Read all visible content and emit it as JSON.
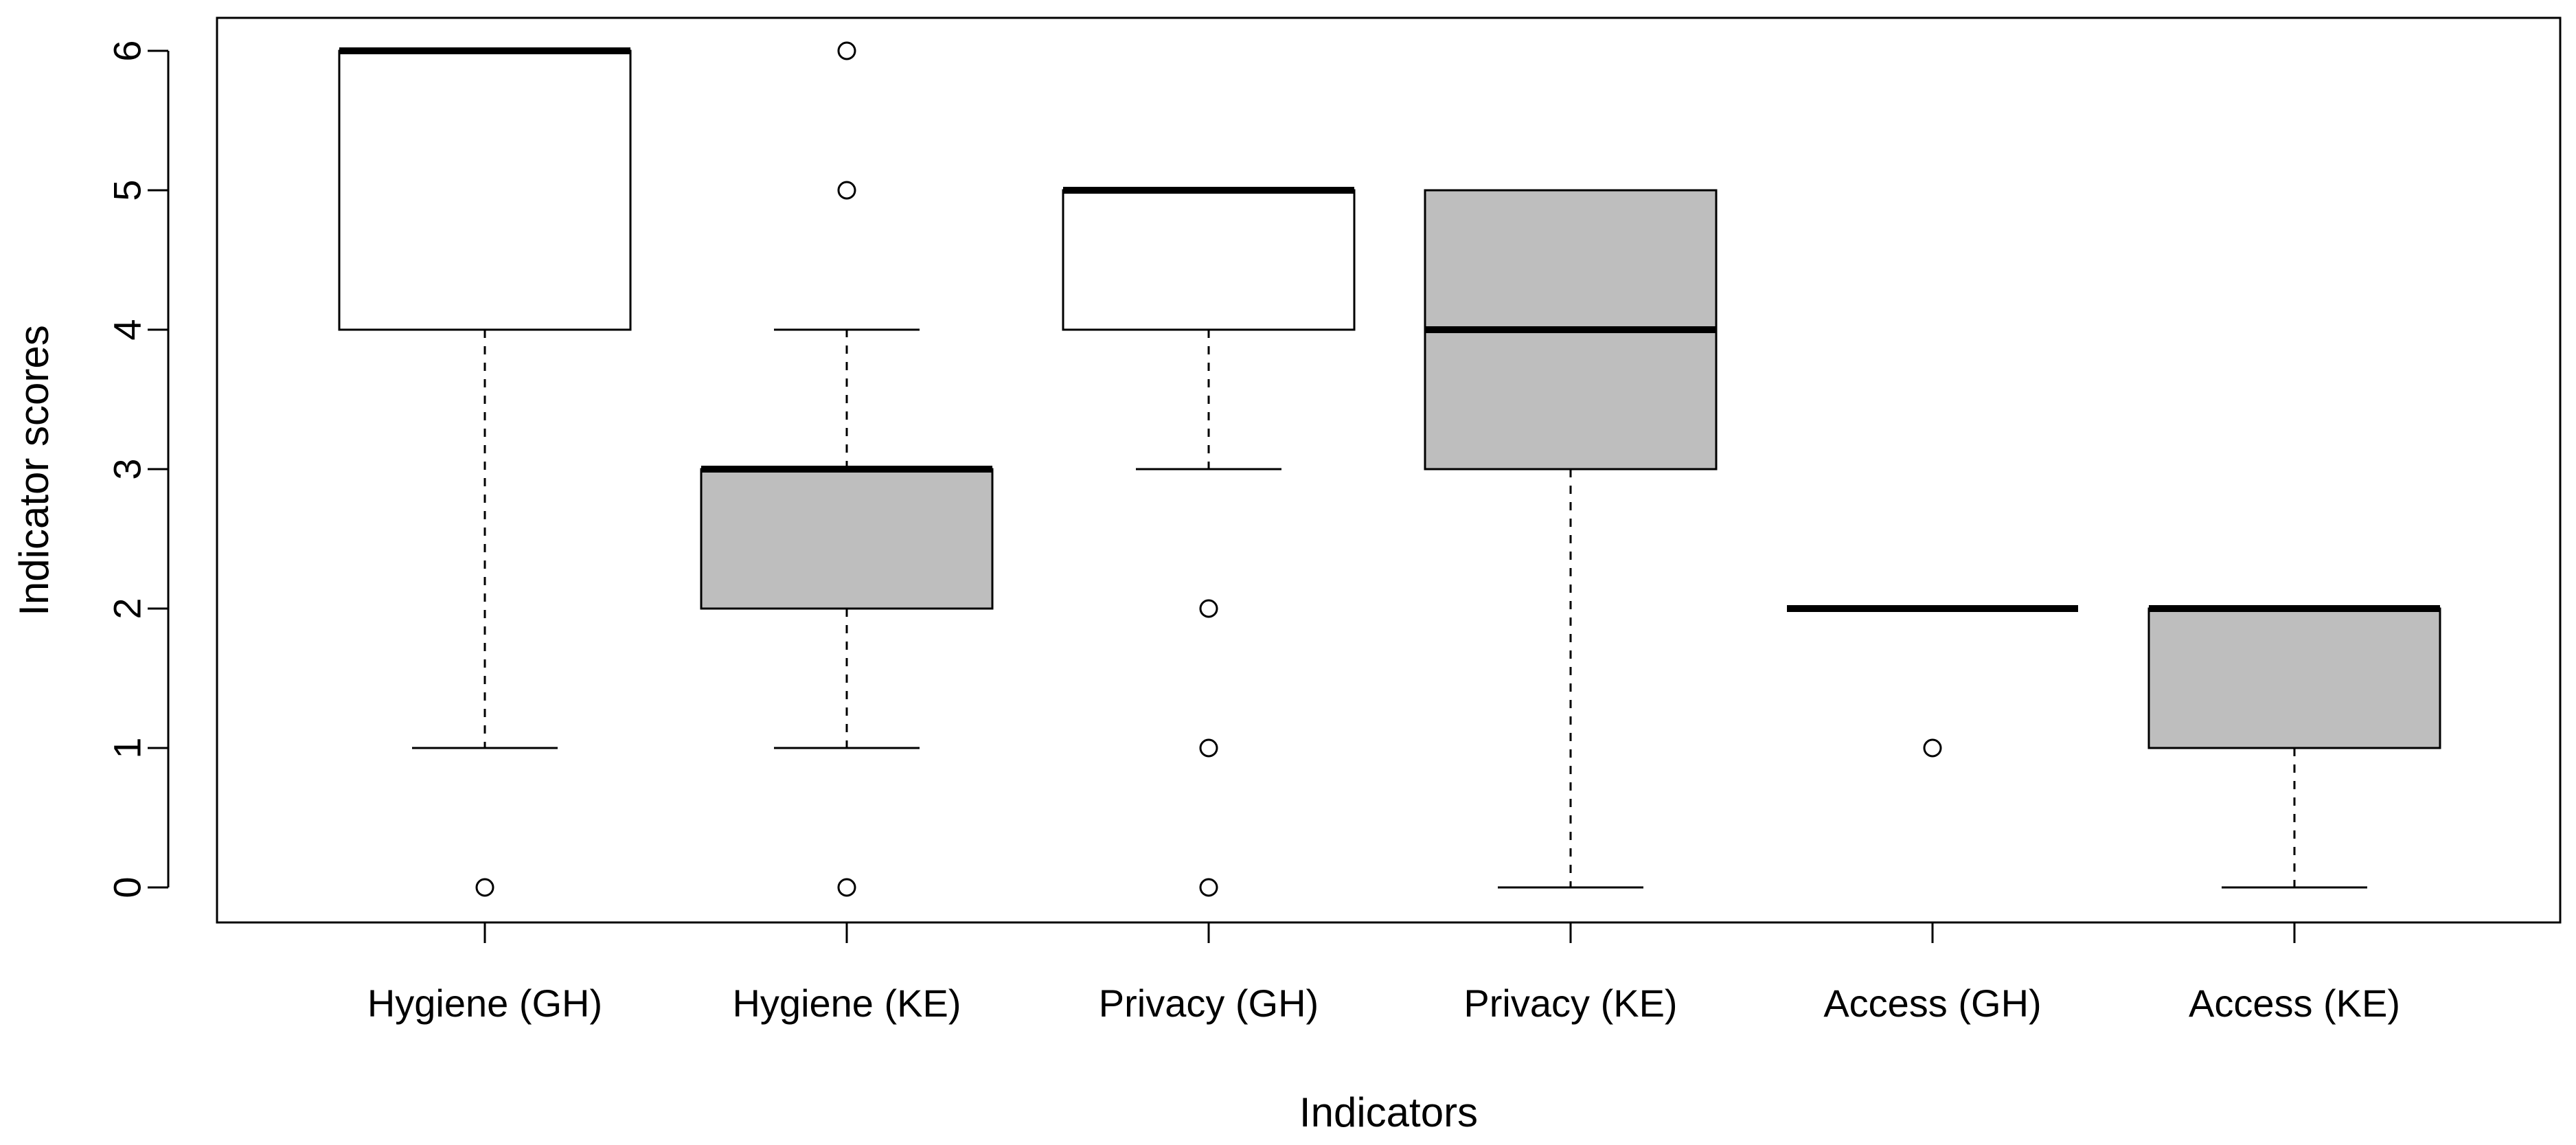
{
  "chart_data": {
    "type": "boxplot",
    "title": "",
    "xlabel": "Indicators",
    "ylabel": "Indicator scores",
    "ylim": [
      -0.25,
      6.25
    ],
    "yticks": [
      0,
      1,
      2,
      3,
      4,
      5,
      6
    ],
    "grid": false,
    "categories": [
      "Hygiene (GH)",
      "Hygiene (KE)",
      "Privacy (GH)",
      "Privacy (KE)",
      "Access (GH)",
      "Access (KE)"
    ],
    "boxes": [
      {
        "label": "Hygiene (GH)",
        "whisker_low": 1,
        "q1": 4,
        "median": 6,
        "q3": 6,
        "whisker_high": 6,
        "outliers": [
          0
        ],
        "fill": "#ffffff"
      },
      {
        "label": "Hygiene (KE)",
        "whisker_low": 1,
        "q1": 2,
        "median": 3,
        "q3": 3,
        "whisker_high": 4,
        "outliers": [
          0,
          5,
          6
        ],
        "fill": "#bebebe"
      },
      {
        "label": "Privacy (GH)",
        "whisker_low": 3,
        "q1": 4,
        "median": 5,
        "q3": 5,
        "whisker_high": 5,
        "outliers": [
          0,
          1,
          2
        ],
        "fill": "#ffffff"
      },
      {
        "label": "Privacy (KE)",
        "whisker_low": 0,
        "q1": 3,
        "median": 4,
        "q3": 5,
        "whisker_high": 5,
        "outliers": [],
        "fill": "#bebebe"
      },
      {
        "label": "Access (GH)",
        "whisker_low": 2,
        "q1": 2,
        "median": 2,
        "q3": 2,
        "whisker_high": 2,
        "outliers": [
          1
        ],
        "fill": "#ffffff"
      },
      {
        "label": "Access (KE)",
        "whisker_low": 0,
        "q1": 1,
        "median": 2,
        "q3": 2,
        "whisker_high": 2,
        "outliers": [],
        "fill": "#bebebe"
      }
    ]
  }
}
